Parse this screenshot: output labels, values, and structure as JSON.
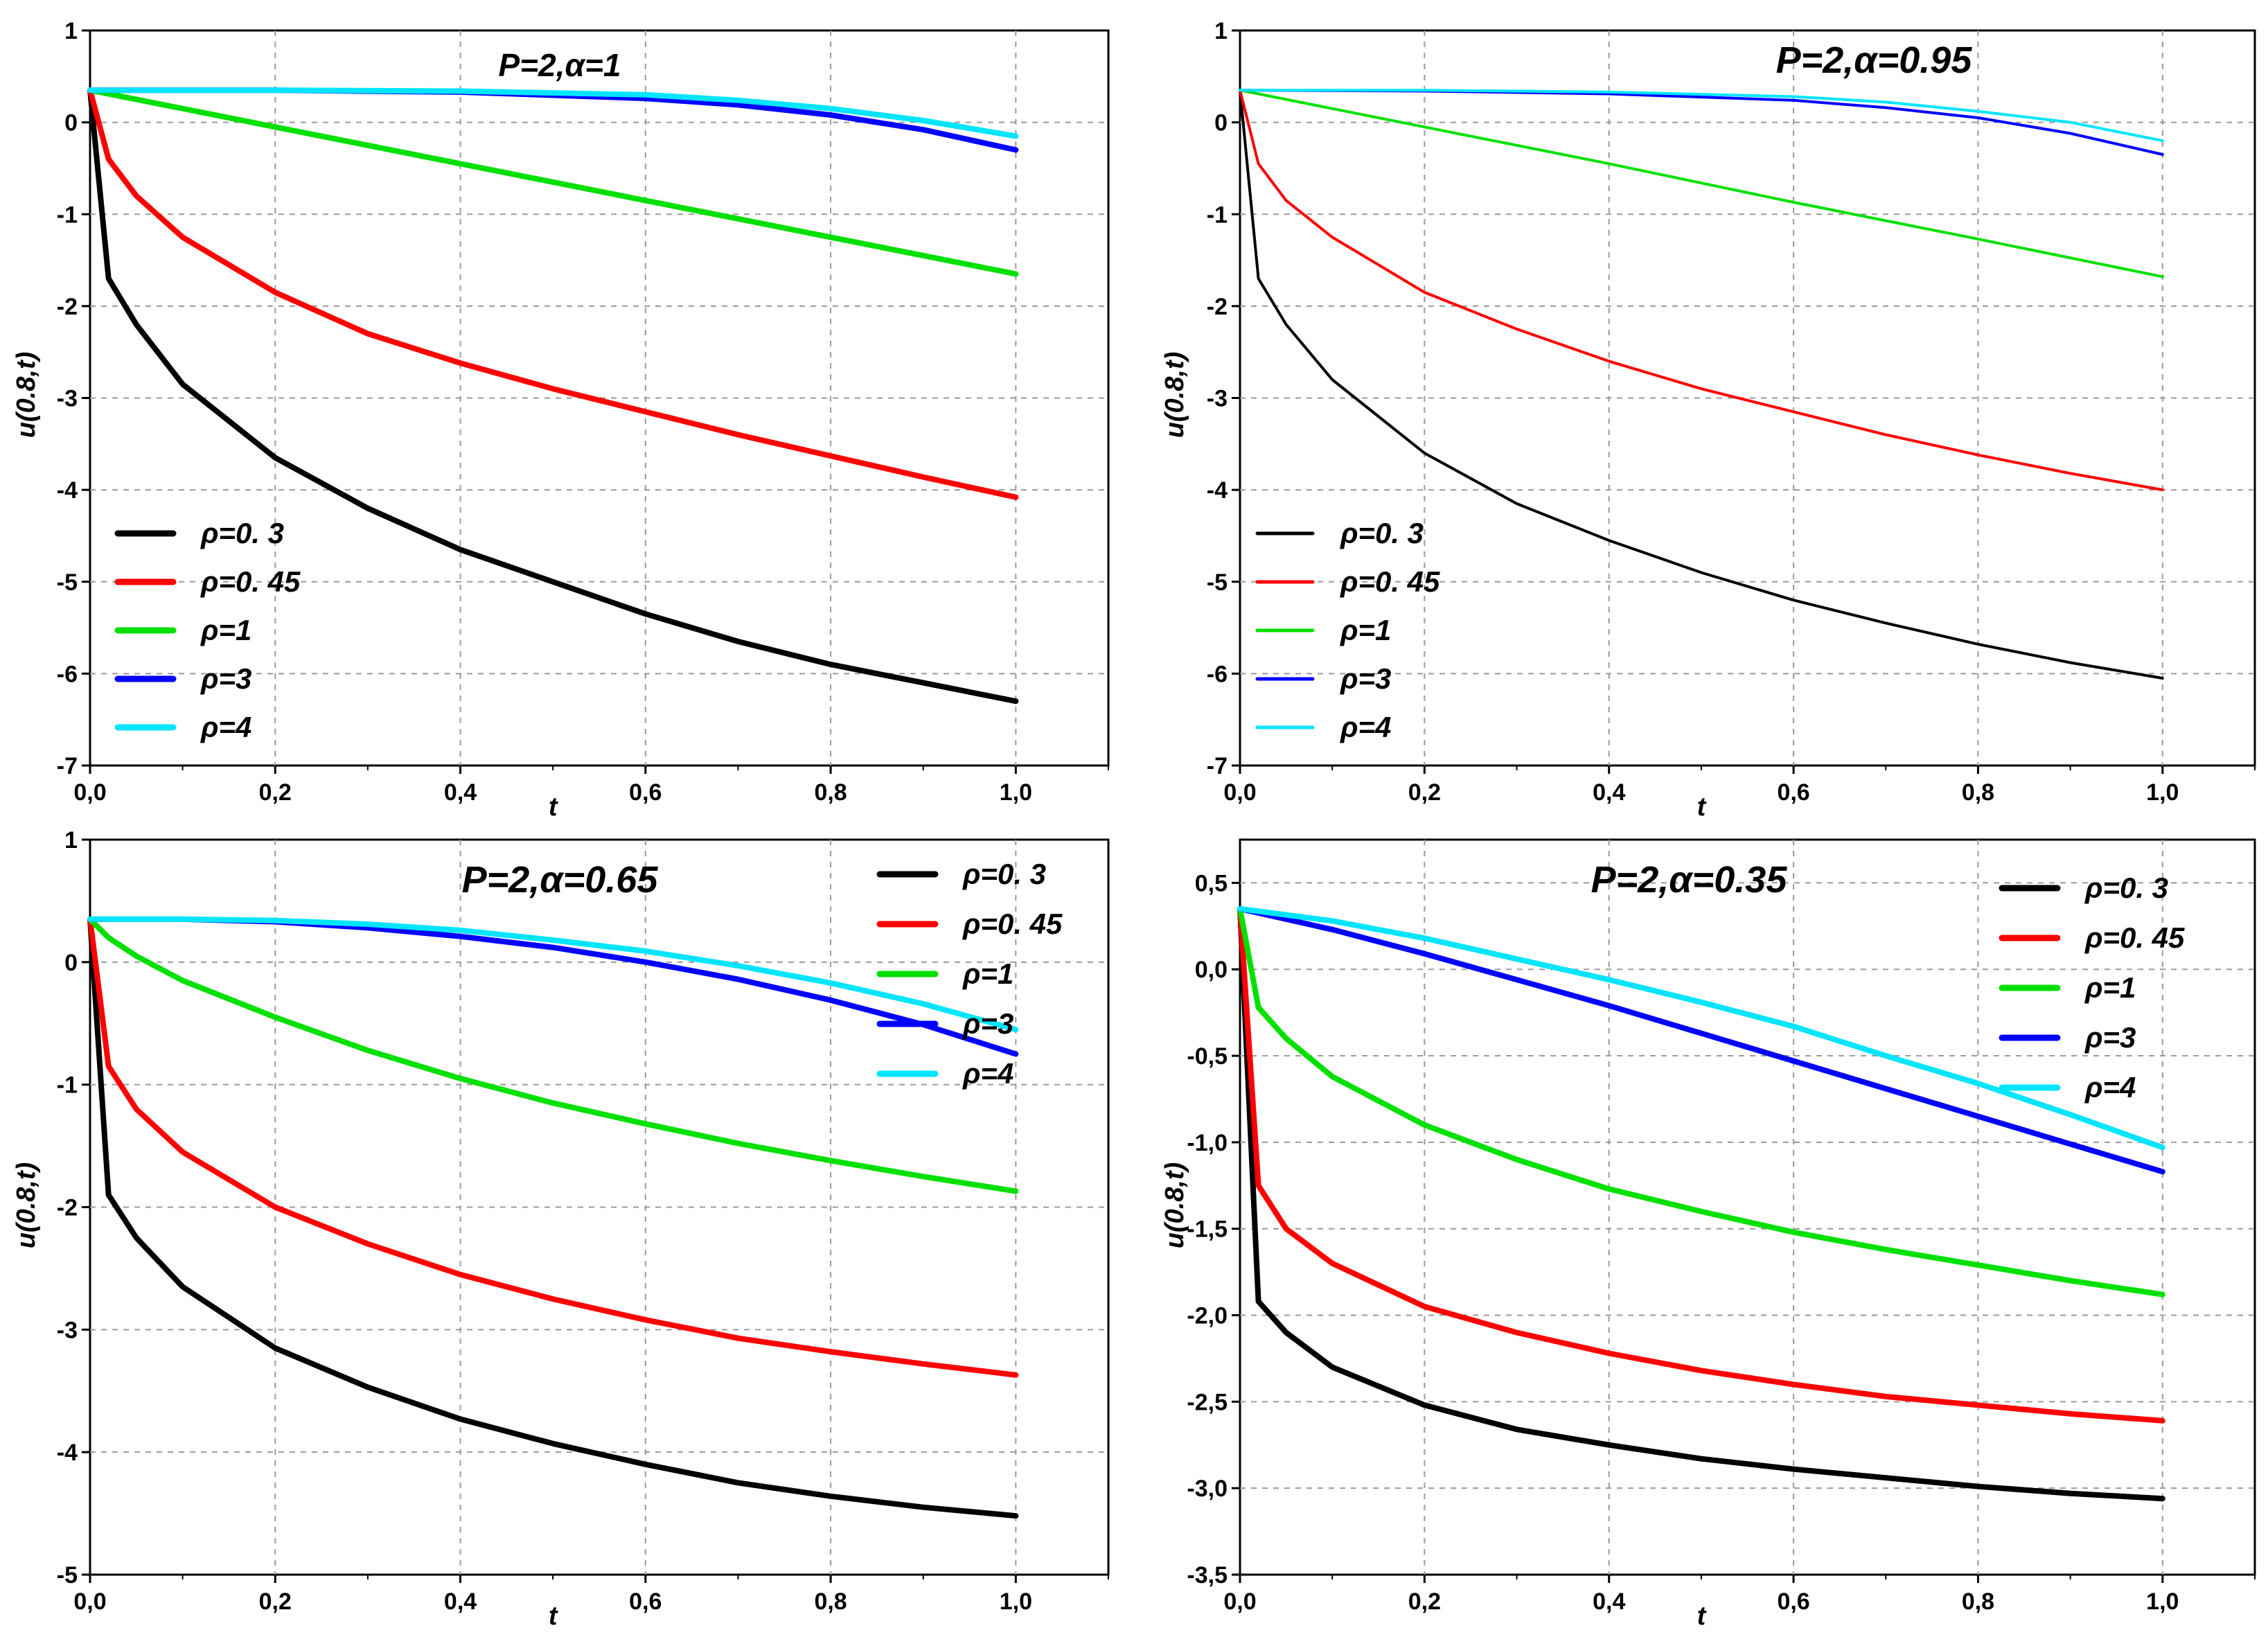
{
  "chart_data": [
    {
      "type": "line",
      "title": "P=2,α=1",
      "xlabel": "t",
      "ylabel": "u(0.8,t)",
      "xlim": [
        0,
        1.1
      ],
      "ylim": [
        -7,
        1
      ],
      "xticks": [
        0.0,
        0.2,
        0.4,
        0.6,
        0.8,
        1.0
      ],
      "xtick_labels": [
        "0,0",
        "0,2",
        "0,4",
        "0,6",
        "0,8",
        "1,0"
      ],
      "yticks": [
        -7,
        -6,
        -5,
        -4,
        -3,
        -2,
        -1,
        0,
        1
      ],
      "ytick_labels": [
        "-7",
        "-6",
        "-5",
        "-4",
        "-3",
        "-2",
        "-1",
        "0",
        "1"
      ],
      "grid": true,
      "legend_position": "bottom-left",
      "series": [
        {
          "name": "ρ=0. 3",
          "color": "#000000",
          "x": [
            0,
            0.02,
            0.05,
            0.1,
            0.2,
            0.3,
            0.4,
            0.5,
            0.6,
            0.7,
            0.8,
            0.9,
            1.0
          ],
          "y": [
            0.35,
            -1.7,
            -2.2,
            -2.85,
            -3.65,
            -4.2,
            -4.65,
            -5.0,
            -5.35,
            -5.65,
            -5.9,
            -6.1,
            -6.3
          ]
        },
        {
          "name": "ρ=0. 45",
          "color": "#ff0000",
          "x": [
            0,
            0.02,
            0.05,
            0.1,
            0.2,
            0.3,
            0.4,
            0.5,
            0.6,
            0.7,
            0.8,
            0.9,
            1.0
          ],
          "y": [
            0.35,
            -0.4,
            -0.8,
            -1.25,
            -1.85,
            -2.3,
            -2.62,
            -2.9,
            -3.15,
            -3.4,
            -3.63,
            -3.86,
            -4.08
          ]
        },
        {
          "name": "ρ=1",
          "color": "#00e000",
          "x": [
            0,
            0.2,
            0.4,
            0.6,
            0.8,
            1.0
          ],
          "y": [
            0.35,
            -0.05,
            -0.45,
            -0.85,
            -1.25,
            -1.65
          ]
        },
        {
          "name": "ρ=3",
          "color": "#0000ff",
          "x": [
            0,
            0.2,
            0.4,
            0.6,
            0.7,
            0.8,
            0.9,
            1.0
          ],
          "y": [
            0.35,
            0.35,
            0.33,
            0.26,
            0.19,
            0.08,
            -0.08,
            -0.3
          ]
        },
        {
          "name": "ρ=4",
          "color": "#00e5ff",
          "x": [
            0,
            0.2,
            0.4,
            0.6,
            0.7,
            0.8,
            0.9,
            1.0
          ],
          "y": [
            0.35,
            0.35,
            0.34,
            0.3,
            0.24,
            0.15,
            0.02,
            -0.15
          ]
        }
      ]
    },
    {
      "type": "line",
      "title": "P=2,α=0.95",
      "xlabel": "t",
      "ylabel": "u(0.8,t)",
      "xlim": [
        0,
        1.1
      ],
      "ylim": [
        -7,
        1
      ],
      "xticks": [
        0.0,
        0.2,
        0.4,
        0.6,
        0.8,
        1.0
      ],
      "xtick_labels": [
        "0,0",
        "0,2",
        "0,4",
        "0,6",
        "0,8",
        "1,0"
      ],
      "yticks": [
        -7,
        -6,
        -5,
        -4,
        -3,
        -2,
        -1,
        0,
        1
      ],
      "ytick_labels": [
        "-7",
        "-6",
        "-5",
        "-4",
        "-3",
        "-2",
        "-1",
        "0",
        "1"
      ],
      "grid": true,
      "legend_position": "bottom-left",
      "series": [
        {
          "name": "ρ=0. 3",
          "color": "#000000",
          "x": [
            0,
            0.02,
            0.05,
            0.1,
            0.2,
            0.3,
            0.4,
            0.5,
            0.6,
            0.7,
            0.8,
            0.9,
            1.0
          ],
          "y": [
            0.35,
            -1.7,
            -2.2,
            -2.8,
            -3.6,
            -4.15,
            -4.55,
            -4.9,
            -5.2,
            -5.45,
            -5.68,
            -5.88,
            -6.05
          ]
        },
        {
          "name": "ρ=0. 45",
          "color": "#ff0000",
          "x": [
            0,
            0.02,
            0.05,
            0.1,
            0.2,
            0.3,
            0.4,
            0.5,
            0.6,
            0.7,
            0.8,
            0.9,
            1.0
          ],
          "y": [
            0.35,
            -0.45,
            -0.85,
            -1.25,
            -1.85,
            -2.25,
            -2.6,
            -2.9,
            -3.15,
            -3.4,
            -3.62,
            -3.82,
            -4.0
          ]
        },
        {
          "name": "ρ=1",
          "color": "#00e000",
          "x": [
            0,
            0.2,
            0.4,
            0.6,
            0.8,
            1.0
          ],
          "y": [
            0.35,
            -0.05,
            -0.45,
            -0.87,
            -1.27,
            -1.68
          ]
        },
        {
          "name": "ρ=3",
          "color": "#0000ff",
          "x": [
            0,
            0.2,
            0.4,
            0.6,
            0.7,
            0.8,
            0.9,
            1.0
          ],
          "y": [
            0.35,
            0.34,
            0.31,
            0.24,
            0.16,
            0.05,
            -0.12,
            -0.35
          ]
        },
        {
          "name": "ρ=4",
          "color": "#00e5ff",
          "x": [
            0,
            0.2,
            0.4,
            0.6,
            0.7,
            0.8,
            0.9,
            1.0
          ],
          "y": [
            0.35,
            0.35,
            0.33,
            0.28,
            0.22,
            0.12,
            0.0,
            -0.2
          ]
        }
      ]
    },
    {
      "type": "line",
      "title": "P=2,α=0.65",
      "xlabel": "t",
      "ylabel": "u(0.8,t)",
      "xlim": [
        0,
        1.1
      ],
      "ylim": [
        -5,
        1
      ],
      "xticks": [
        0.0,
        0.2,
        0.4,
        0.6,
        0.8,
        1.0
      ],
      "xtick_labels": [
        "0,0",
        "0,2",
        "0,4",
        "0,6",
        "0,8",
        "1,0"
      ],
      "yticks": [
        -5,
        -4,
        -3,
        -2,
        -1,
        0,
        1
      ],
      "ytick_labels": [
        "-5",
        "-4",
        "-3",
        "-2",
        "-1",
        "0",
        "1"
      ],
      "grid": true,
      "legend_position": "top-right",
      "series": [
        {
          "name": "ρ=0. 3",
          "color": "#000000",
          "x": [
            0,
            0.02,
            0.05,
            0.1,
            0.2,
            0.3,
            0.4,
            0.5,
            0.6,
            0.7,
            0.8,
            0.9,
            1.0
          ],
          "y": [
            0.35,
            -1.9,
            -2.25,
            -2.65,
            -3.15,
            -3.47,
            -3.73,
            -3.93,
            -4.1,
            -4.25,
            -4.36,
            -4.45,
            -4.52
          ]
        },
        {
          "name": "ρ=0. 45",
          "color": "#ff0000",
          "x": [
            0,
            0.02,
            0.05,
            0.1,
            0.2,
            0.3,
            0.4,
            0.5,
            0.6,
            0.7,
            0.8,
            0.9,
            1.0
          ],
          "y": [
            0.35,
            -0.85,
            -1.2,
            -1.55,
            -2.0,
            -2.3,
            -2.55,
            -2.75,
            -2.92,
            -3.07,
            -3.18,
            -3.28,
            -3.37
          ]
        },
        {
          "name": "ρ=1",
          "color": "#00e000",
          "x": [
            0,
            0.02,
            0.05,
            0.1,
            0.2,
            0.3,
            0.4,
            0.5,
            0.6,
            0.7,
            0.8,
            0.9,
            1.0
          ],
          "y": [
            0.35,
            0.2,
            0.05,
            -0.15,
            -0.45,
            -0.72,
            -0.95,
            -1.15,
            -1.32,
            -1.48,
            -1.62,
            -1.75,
            -1.87
          ]
        },
        {
          "name": "ρ=3",
          "color": "#0000ff",
          "x": [
            0,
            0.1,
            0.2,
            0.3,
            0.4,
            0.5,
            0.6,
            0.7,
            0.8,
            0.9,
            1.0
          ],
          "y": [
            0.35,
            0.35,
            0.33,
            0.28,
            0.21,
            0.12,
            0.0,
            -0.14,
            -0.31,
            -0.51,
            -0.75
          ]
        },
        {
          "name": "ρ=4",
          "color": "#00e5ff",
          "x": [
            0,
            0.1,
            0.2,
            0.3,
            0.4,
            0.5,
            0.6,
            0.7,
            0.8,
            0.9,
            1.0
          ],
          "y": [
            0.35,
            0.35,
            0.34,
            0.31,
            0.26,
            0.18,
            0.09,
            -0.03,
            -0.17,
            -0.34,
            -0.55
          ]
        }
      ]
    },
    {
      "type": "line",
      "title": "P=2,α=0.35",
      "xlabel": "t",
      "ylabel": "u(0.8,t)",
      "xlim": [
        0,
        1.1
      ],
      "ylim": [
        -3.5,
        0.75
      ],
      "xticks": [
        0.0,
        0.2,
        0.4,
        0.6,
        0.8,
        1.0
      ],
      "xtick_labels": [
        "0,0",
        "0,2",
        "0,4",
        "0,6",
        "0,8",
        "1,0"
      ],
      "yticks": [
        -3.5,
        -3.0,
        -2.5,
        -2.0,
        -1.5,
        -1.0,
        -0.5,
        0.0,
        0.5
      ],
      "ytick_labels": [
        "-3,5",
        "-3,0",
        "-2,5",
        "-2,0",
        "-1,5",
        "-1,0",
        "-0,5",
        "0,0",
        "0,5"
      ],
      "grid": true,
      "legend_position": "top-right",
      "series": [
        {
          "name": "ρ=0. 3",
          "color": "#000000",
          "x": [
            0,
            0.02,
            0.05,
            0.1,
            0.2,
            0.3,
            0.4,
            0.5,
            0.6,
            0.7,
            0.8,
            0.9,
            1.0
          ],
          "y": [
            0.35,
            -1.92,
            -2.1,
            -2.3,
            -2.52,
            -2.66,
            -2.75,
            -2.83,
            -2.89,
            -2.94,
            -2.99,
            -3.03,
            -3.06
          ]
        },
        {
          "name": "ρ=0. 45",
          "color": "#ff0000",
          "x": [
            0,
            0.02,
            0.05,
            0.1,
            0.2,
            0.3,
            0.4,
            0.5,
            0.6,
            0.7,
            0.8,
            0.9,
            1.0
          ],
          "y": [
            0.35,
            -1.25,
            -1.5,
            -1.7,
            -1.95,
            -2.1,
            -2.22,
            -2.32,
            -2.4,
            -2.47,
            -2.52,
            -2.57,
            -2.61
          ]
        },
        {
          "name": "ρ=1",
          "color": "#00e000",
          "x": [
            0,
            0.02,
            0.05,
            0.1,
            0.2,
            0.3,
            0.4,
            0.5,
            0.6,
            0.7,
            0.8,
            0.9,
            1.0
          ],
          "y": [
            0.35,
            -0.22,
            -0.4,
            -0.62,
            -0.9,
            -1.1,
            -1.27,
            -1.4,
            -1.52,
            -1.62,
            -1.71,
            -1.8,
            -1.88
          ]
        },
        {
          "name": "ρ=3",
          "color": "#0000ff",
          "x": [
            0,
            0.1,
            0.2,
            0.3,
            0.4,
            0.5,
            0.6,
            0.7,
            0.8,
            0.9,
            1.0
          ],
          "y": [
            0.35,
            0.23,
            0.09,
            -0.06,
            -0.21,
            -0.37,
            -0.53,
            -0.69,
            -0.85,
            -1.01,
            -1.17
          ]
        },
        {
          "name": "ρ=4",
          "color": "#00e5ff",
          "x": [
            0,
            0.1,
            0.2,
            0.3,
            0.4,
            0.5,
            0.6,
            0.7,
            0.8,
            0.9,
            1.0
          ],
          "y": [
            0.35,
            0.28,
            0.18,
            0.06,
            -0.06,
            -0.19,
            -0.33,
            -0.5,
            -0.66,
            -0.84,
            -1.03
          ]
        }
      ]
    }
  ]
}
